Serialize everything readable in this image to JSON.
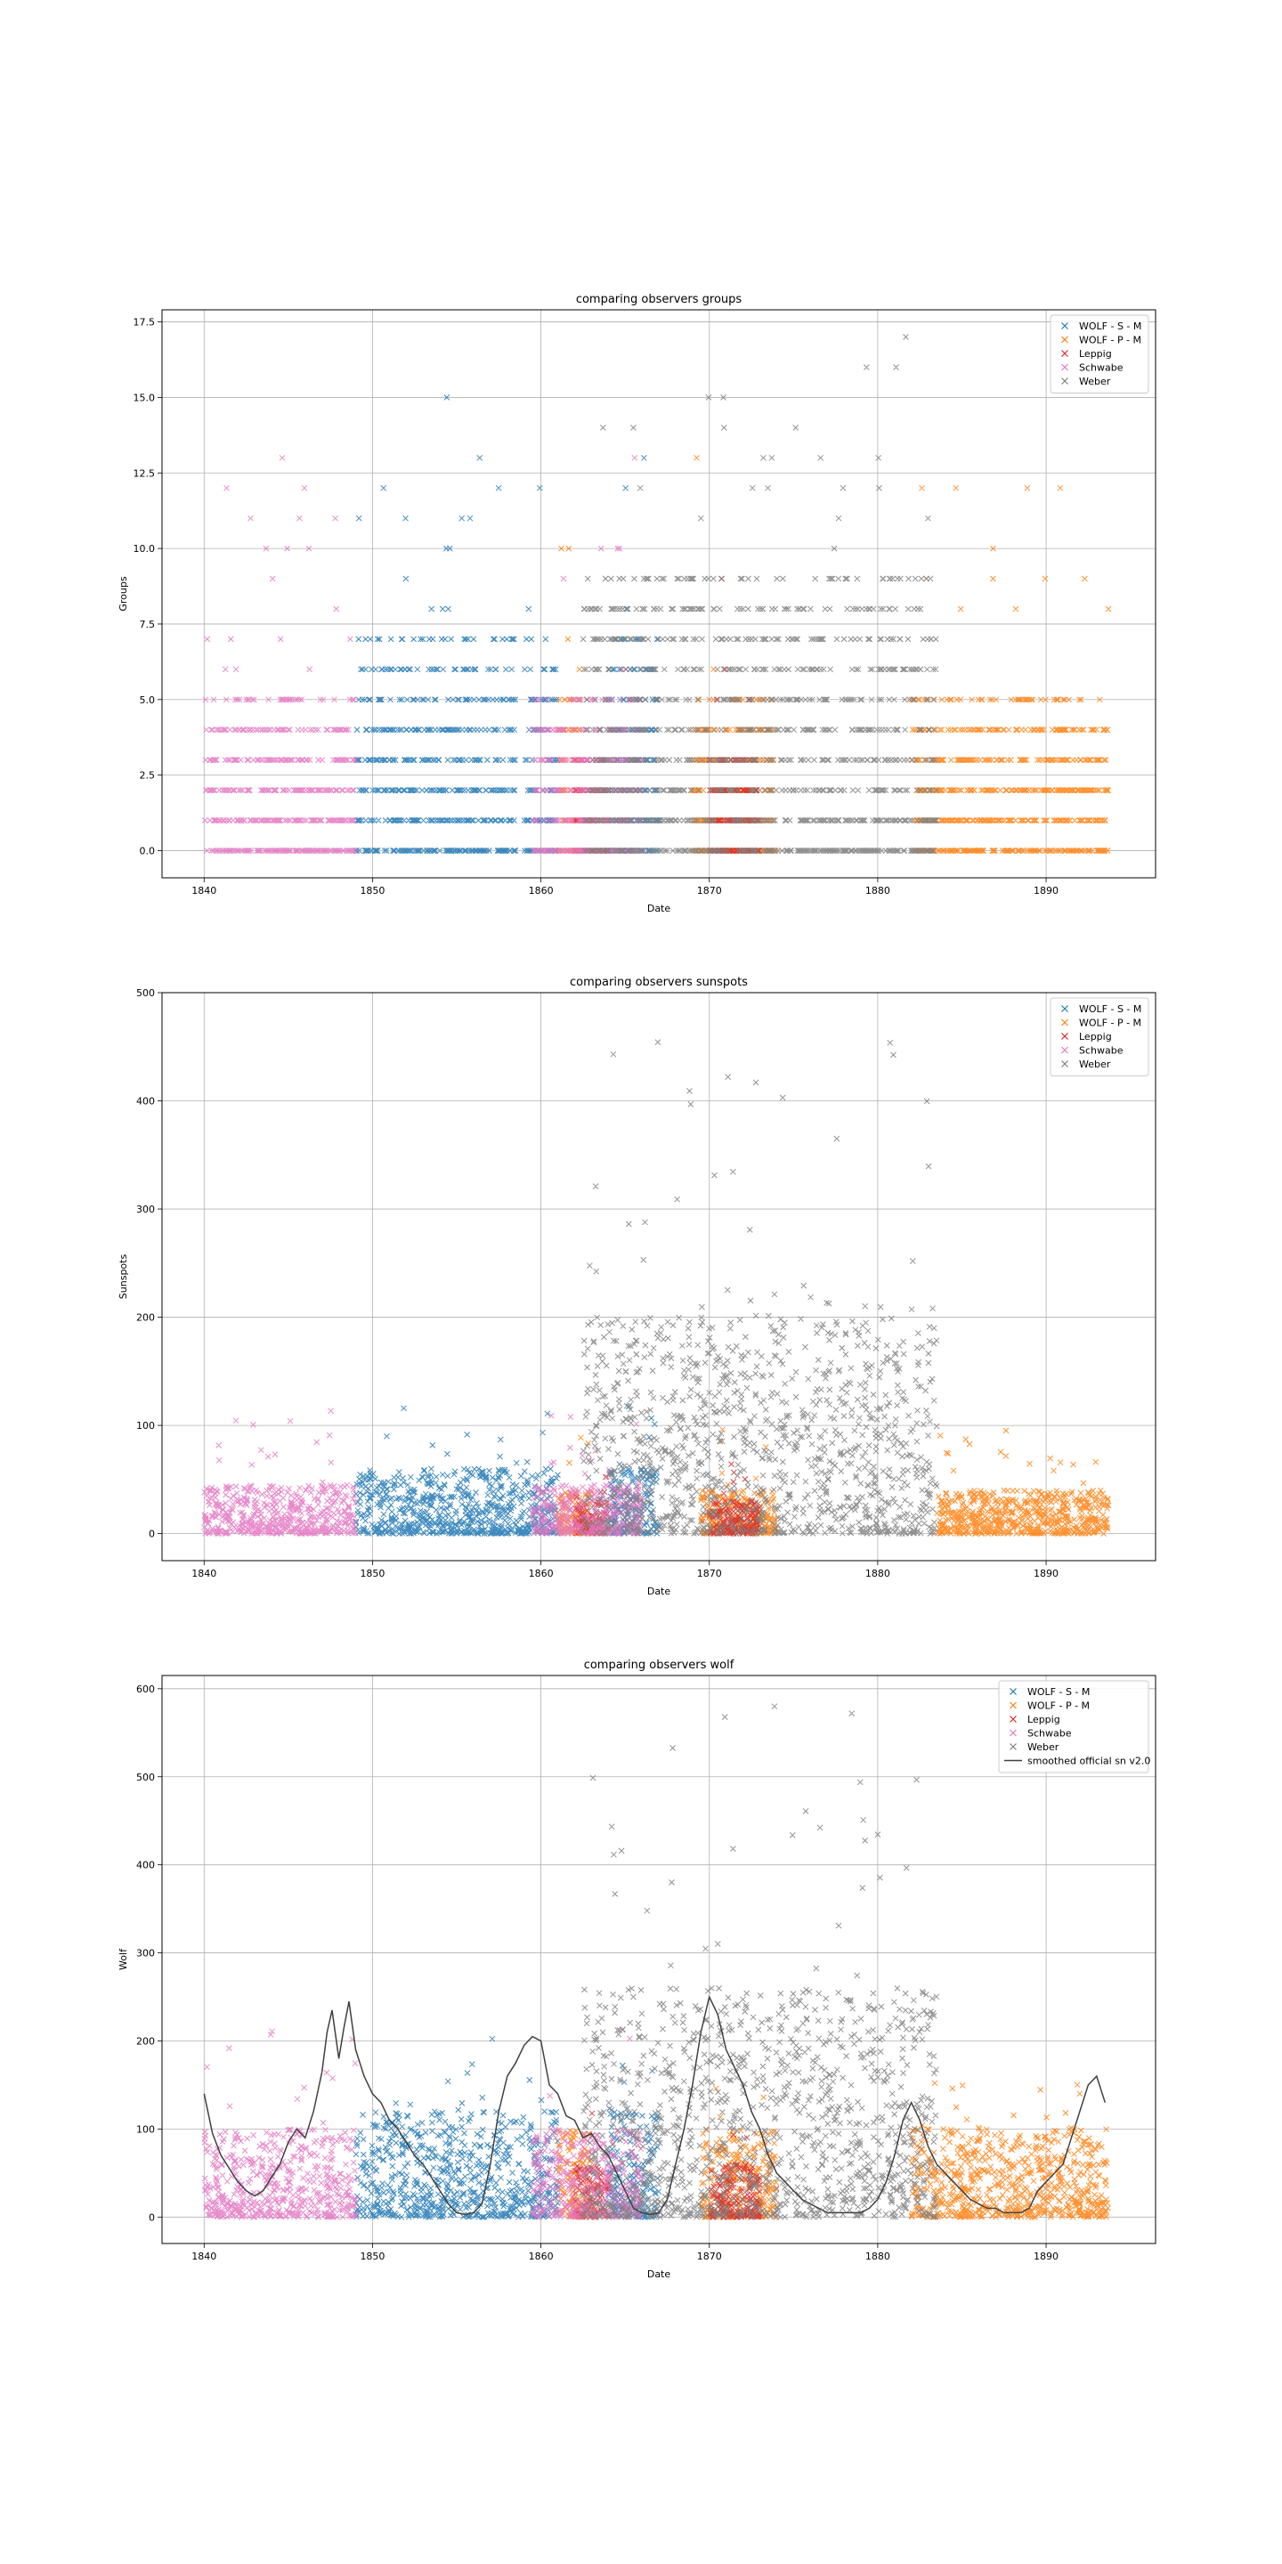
{
  "chart_data": [
    {
      "type": "scatter",
      "title": "comparing observers groups",
      "xlabel": "Date",
      "ylabel": "Groups",
      "xlim": [
        1837.5,
        1896.5
      ],
      "ylim": [
        -0.9,
        17.9
      ],
      "xticks": [
        1840,
        1850,
        1860,
        1870,
        1880,
        1890
      ],
      "yticks": [
        0.0,
        2.5,
        5.0,
        7.5,
        10.0,
        12.5,
        15.0,
        17.5
      ],
      "ytick_labels": [
        "0.0",
        "2.5",
        "5.0",
        "7.5",
        "10.0",
        "12.5",
        "15.0",
        "17.5"
      ],
      "grid": true,
      "legend_position": "upper right",
      "series": [
        {
          "name": "WOLF - S - M",
          "color": "#1f77b4",
          "marker": "x",
          "segments": [
            [
              1849.0,
              1858.5
            ],
            [
              1859.0,
              1861.0
            ],
            [
              1864.0,
              1867.0
            ]
          ],
          "typical_max": 7,
          "peak": 15
        },
        {
          "name": "WOLF - P - M",
          "color": "#ff7f0e",
          "marker": "x",
          "segments": [
            [
              1861.0,
              1862.5
            ],
            [
              1869.0,
              1874.0
            ],
            [
              1882.0,
              1893.7
            ]
          ],
          "typical_max": 5,
          "peak": 13
        },
        {
          "name": "Leppig",
          "color": "#d62728",
          "marker": "x",
          "segments": [
            [
              1862.0,
              1864.0
            ],
            [
              1870.0,
              1873.0
            ]
          ],
          "typical_max": 3,
          "peak": 9
        },
        {
          "name": "Schwabe",
          "color": "#e377c2",
          "marker": "x",
          "segments": [
            [
              1840.0,
              1849.0
            ],
            [
              1859.5,
              1866.0
            ]
          ],
          "typical_max": 5,
          "peak": 13
        },
        {
          "name": "Weber",
          "color": "#7f7f7f",
          "marker": "x",
          "segments": [
            [
              1862.5,
              1875.0
            ],
            [
              1875.0,
              1883.5
            ]
          ],
          "typical_max": 9,
          "peak": 17
        }
      ],
      "smoothed": null
    },
    {
      "type": "scatter",
      "title": "comparing observers sunspots",
      "xlabel": "Date",
      "ylabel": "Sunspots",
      "xlim": [
        1837.5,
        1896.5
      ],
      "ylim": [
        -25,
        500
      ],
      "xticks": [
        1840,
        1850,
        1860,
        1870,
        1880,
        1890
      ],
      "yticks": [
        0,
        100,
        200,
        300,
        400,
        500
      ],
      "ytick_labels": [
        "0",
        "100",
        "200",
        "300",
        "400",
        "500"
      ],
      "grid": true,
      "legend_position": "upper right",
      "series": [
        {
          "name": "WOLF - S - M",
          "color": "#1f77b4",
          "marker": "x",
          "segments": [
            [
              1849.0,
              1858.5
            ],
            [
              1858.5,
              1861.0
            ],
            [
              1864.0,
              1867.0
            ]
          ],
          "typical_max": 60,
          "peak": 120
        },
        {
          "name": "WOLF - P - M",
          "color": "#ff7f0e",
          "marker": "x",
          "segments": [
            [
              1861.0,
              1863.0
            ],
            [
              1869.5,
              1874.0
            ],
            [
              1883.5,
              1893.7
            ]
          ],
          "typical_max": 40,
          "peak": 100
        },
        {
          "name": "Leppig",
          "color": "#d62728",
          "marker": "x",
          "segments": [
            [
              1862.0,
              1864.0
            ],
            [
              1870.0,
              1873.0
            ]
          ],
          "typical_max": 30,
          "peak": 70
        },
        {
          "name": "Schwabe",
          "color": "#e377c2",
          "marker": "x",
          "segments": [
            [
              1840.0,
              1849.0
            ],
            [
              1859.5,
              1866.0
            ]
          ],
          "typical_max": 45,
          "peak": 115
        },
        {
          "name": "Weber",
          "color": "#7f7f7f",
          "marker": "x",
          "segments": [
            [
              1862.5,
              1866.0
            ],
            [
              1866.0,
              1876.0
            ],
            [
              1876.0,
              1883.5
            ]
          ],
          "typical_max": 200,
          "peak": 475
        }
      ],
      "smoothed": null
    },
    {
      "type": "scatter",
      "title": "comparing observers wolf",
      "xlabel": "Date",
      "ylabel": "Wolf",
      "xlim": [
        1837.5,
        1896.5
      ],
      "ylim": [
        -30,
        615
      ],
      "xticks": [
        1840,
        1850,
        1860,
        1870,
        1880,
        1890
      ],
      "yticks": [
        0,
        100,
        200,
        300,
        400,
        500,
        600
      ],
      "ytick_labels": [
        "0",
        "100",
        "200",
        "300",
        "400",
        "500",
        "600"
      ],
      "grid": true,
      "legend_position": "upper right",
      "series": [
        {
          "name": "WOLF - S - M",
          "color": "#1f77b4",
          "marker": "x",
          "segments": [
            [
              1849.0,
              1858.5
            ],
            [
              1858.5,
              1861.0
            ],
            [
              1864.0,
              1867.0
            ]
          ],
          "typical_max": 120,
          "peak": 205
        },
        {
          "name": "WOLF - P - M",
          "color": "#ff7f0e",
          "marker": "x",
          "segments": [
            [
              1861.0,
              1863.0
            ],
            [
              1869.5,
              1874.0
            ],
            [
              1882.0,
              1893.7
            ]
          ],
          "typical_max": 100,
          "peak": 155
        },
        {
          "name": "Leppig",
          "color": "#d62728",
          "marker": "x",
          "segments": [
            [
              1862.0,
              1864.0
            ],
            [
              1870.0,
              1873.0
            ]
          ],
          "typical_max": 60,
          "peak": 120
        },
        {
          "name": "Schwabe",
          "color": "#e377c2",
          "marker": "x",
          "segments": [
            [
              1840.0,
              1849.0
            ],
            [
              1859.5,
              1866.0
            ]
          ],
          "typical_max": 100,
          "peak": 215
        },
        {
          "name": "Weber",
          "color": "#7f7f7f",
          "marker": "x",
          "segments": [
            [
              1862.5,
              1866.0
            ],
            [
              1866.0,
              1876.0
            ],
            [
              1876.0,
              1883.5
            ]
          ],
          "typical_max": 260,
          "peak": 585
        }
      ],
      "smoothed": {
        "name": "smoothed official sn v2.0",
        "color": "#404040",
        "x": [
          1840.0,
          1840.5,
          1841.0,
          1841.5,
          1842.0,
          1842.5,
          1843.0,
          1843.5,
          1844.0,
          1844.5,
          1845.0,
          1845.5,
          1846.0,
          1846.5,
          1847.0,
          1847.3,
          1847.6,
          1848.0,
          1848.3,
          1848.6,
          1849.0,
          1849.5,
          1850.0,
          1850.5,
          1851.0,
          1851.5,
          1852.0,
          1852.5,
          1853.0,
          1853.5,
          1854.0,
          1854.5,
          1855.0,
          1855.5,
          1856.0,
          1856.5,
          1857.0,
          1857.5,
          1858.0,
          1858.5,
          1859.0,
          1859.5,
          1860.0,
          1860.5,
          1861.0,
          1861.5,
          1862.0,
          1862.5,
          1863.0,
          1863.5,
          1864.0,
          1864.5,
          1865.0,
          1865.5,
          1866.0,
          1866.5,
          1867.0,
          1867.5,
          1868.0,
          1868.5,
          1869.0,
          1869.5,
          1870.0,
          1870.5,
          1871.0,
          1871.5,
          1872.0,
          1872.5,
          1873.0,
          1873.5,
          1874.0,
          1874.5,
          1875.0,
          1875.5,
          1876.0,
          1876.5,
          1877.0,
          1877.5,
          1878.0,
          1878.5,
          1879.0,
          1879.5,
          1880.0,
          1880.5,
          1881.0,
          1881.5,
          1882.0,
          1882.5,
          1883.0,
          1883.5,
          1884.0,
          1884.5,
          1885.0,
          1885.5,
          1886.0,
          1886.5,
          1887.0,
          1887.5,
          1888.0,
          1888.5,
          1889.0,
          1889.5,
          1890.0,
          1890.5,
          1891.0,
          1891.5,
          1892.0,
          1892.5,
          1893.0,
          1893.5
        ],
        "y": [
          140,
          95,
          70,
          55,
          40,
          30,
          24,
          30,
          45,
          60,
          85,
          100,
          90,
          120,
          165,
          210,
          235,
          180,
          215,
          245,
          190,
          160,
          140,
          130,
          110,
          100,
          85,
          70,
          60,
          45,
          30,
          15,
          5,
          3,
          5,
          15,
          60,
          120,
          160,
          175,
          195,
          205,
          200,
          150,
          140,
          115,
          110,
          90,
          95,
          80,
          70,
          50,
          30,
          10,
          5,
          3,
          5,
          20,
          60,
          100,
          150,
          210,
          250,
          230,
          190,
          170,
          150,
          120,
          100,
          70,
          50,
          40,
          30,
          20,
          15,
          10,
          5,
          5,
          5,
          5,
          5,
          10,
          20,
          40,
          70,
          110,
          130,
          110,
          80,
          60,
          50,
          40,
          30,
          20,
          15,
          10,
          10,
          5,
          5,
          5,
          10,
          30,
          40,
          50,
          60,
          90,
          120,
          150,
          160,
          130
        ]
      }
    }
  ]
}
